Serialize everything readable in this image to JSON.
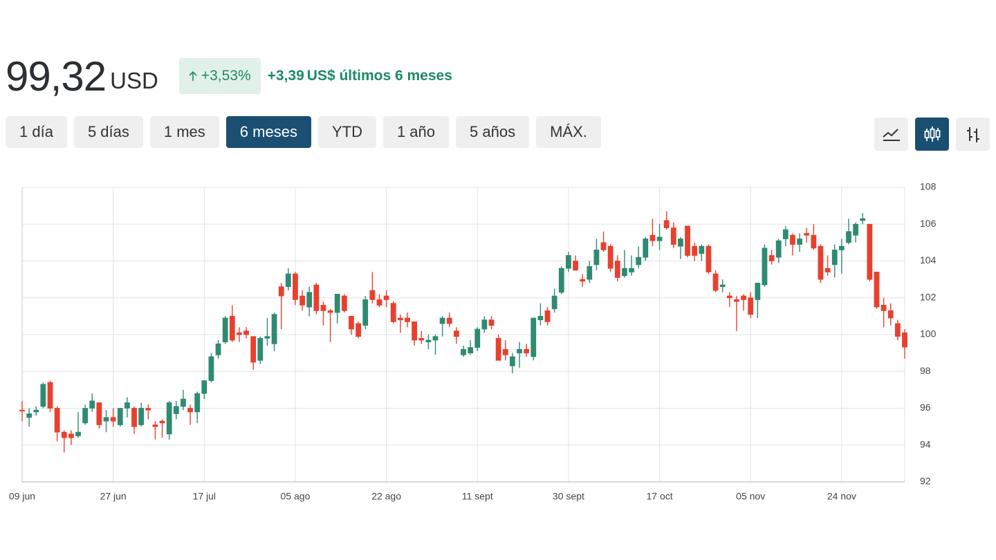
{
  "header": {
    "price": "99,32",
    "currency": "USD",
    "change_percent": "+3,53%",
    "change_amount": "+3,39",
    "change_label": "US$ últimos 6 meses"
  },
  "toolbar": {
    "ranges": [
      "1 día",
      "5 días",
      "1 mes",
      "6 meses",
      "YTD",
      "1 año",
      "5 años",
      "MÁX."
    ],
    "selected": 3
  },
  "chart_data": {
    "type": "candlestick",
    "categories": [
      "09 jun",
      null,
      null,
      null,
      null,
      null,
      null,
      null,
      null,
      null,
      null,
      null,
      null,
      "27 jun",
      null,
      null,
      null,
      null,
      null,
      null,
      null,
      null,
      null,
      null,
      null,
      null,
      "17 jul",
      null,
      null,
      null,
      null,
      null,
      null,
      null,
      null,
      null,
      null,
      null,
      null,
      "05 ago",
      null,
      null,
      null,
      null,
      null,
      null,
      null,
      null,
      null,
      null,
      null,
      null,
      "22 ago",
      null,
      null,
      null,
      null,
      null,
      null,
      null,
      null,
      null,
      null,
      null,
      null,
      "11 sept",
      null,
      null,
      null,
      null,
      null,
      null,
      null,
      null,
      null,
      null,
      null,
      null,
      "30 sept",
      null,
      null,
      null,
      null,
      null,
      null,
      null,
      null,
      null,
      null,
      null,
      null,
      "17 oct",
      null,
      null,
      null,
      null,
      null,
      null,
      null,
      null,
      null,
      null,
      null,
      null,
      "05 nov",
      null,
      null,
      null,
      null,
      null,
      null,
      null,
      null,
      null,
      null,
      null,
      null,
      "24 nov",
      null,
      null,
      null,
      null,
      null,
      null,
      null,
      null,
      null
    ],
    "open": [
      95.9,
      95.5,
      95.8,
      96.1,
      97.4,
      96.0,
      94.7,
      94.6,
      94.5,
      95.2,
      96.0,
      96.3,
      95.3,
      95.5,
      95.1,
      96.0,
      96.0,
      95.1,
      96.0,
      95.1,
      95.3,
      94.6,
      95.7,
      96.1,
      96.0,
      95.8,
      96.8,
      97.5,
      98.9,
      99.6,
      101.0,
      100.1,
      100.2,
      99.9,
      98.6,
      99.8,
      99.5,
      102.6,
      102.6,
      103.3,
      102.1,
      101.5,
      102.7,
      101.6,
      101.3,
      101.2,
      102.1,
      101.0,
      100.6,
      100.5,
      102.4,
      101.9,
      102.1,
      101.7,
      100.9,
      100.9,
      100.7,
      99.8,
      99.6,
      99.7,
      100.6,
      100.9,
      100.2,
      98.9,
      99.0,
      99.3,
      100.3,
      100.8,
      99.8,
      99.2,
      98.3,
      99.0,
      99.2,
      98.8,
      100.8,
      101.3,
      101.4,
      102.3,
      103.6,
      104.0,
      103.0,
      103.0,
      103.8,
      105.0,
      104.8,
      104.0,
      103.2,
      103.4,
      103.8,
      104.2,
      105.4,
      105.1,
      106.2,
      105.8,
      104.8,
      105.9,
      104.8,
      104.4,
      104.8,
      103.3,
      102.6,
      102.1,
      101.9,
      102.1,
      102.0,
      101.9,
      102.7,
      104.3,
      104.2,
      105.2,
      105.4,
      104.9,
      105.5,
      105.4,
      104.8,
      103.6,
      103.8,
      104.6,
      105.0,
      105.4,
      106.2,
      106.0,
      103.4,
      101.6,
      101.3,
      100.6,
      100.1
    ],
    "high": [
      96.4,
      96.0,
      96.1,
      97.4,
      97.5,
      96.1,
      94.8,
      94.8,
      95.8,
      96.2,
      96.8,
      96.3,
      95.9,
      96.0,
      96.0,
      96.6,
      96.1,
      96.3,
      96.2,
      95.3,
      95.4,
      96.4,
      96.4,
      97.0,
      96.2,
      96.9,
      97.5,
      99.0,
      99.7,
      101.0,
      101.6,
      100.4,
      100.4,
      99.9,
      99.9,
      100.9,
      101.2,
      102.8,
      103.6,
      103.4,
      102.4,
      102.6,
      102.8,
      101.8,
      101.4,
      102.2,
      102.2,
      101.0,
      100.7,
      102.1,
      103.4,
      102.2,
      102.4,
      101.8,
      101.1,
      101.2,
      100.7,
      100.2,
      100.0,
      100.0,
      101.0,
      101.2,
      100.4,
      99.4,
      99.7,
      100.4,
      101.0,
      101.0,
      100.0,
      99.7,
      99.0,
      99.6,
      99.5,
      100.9,
      101.7,
      101.5,
      102.5,
      103.7,
      104.5,
      104.3,
      103.3,
      104.0,
      105.2,
      105.6,
      104.9,
      104.3,
      104.6,
      104.3,
      104.8,
      105.3,
      106.3,
      106.0,
      106.7,
      106.1,
      105.3,
      105.9,
      105.0,
      104.9,
      104.9,
      103.5,
      103.0,
      102.3,
      102.1,
      102.2,
      102.3,
      102.8,
      104.9,
      104.6,
      105.2,
      105.9,
      105.5,
      105.5,
      105.8,
      106.0,
      104.9,
      104.3,
      104.9,
      105.2,
      106.3,
      106.1,
      106.6,
      106.0,
      103.4,
      102.0,
      101.7,
      100.8,
      100.3
    ],
    "low": [
      95.3,
      95.0,
      95.6,
      96.0,
      95.8,
      94.2,
      93.6,
      94.0,
      94.4,
      95.1,
      95.8,
      94.9,
      94.7,
      95.0,
      95.0,
      95.5,
      94.6,
      95.0,
      95.4,
      94.3,
      94.4,
      94.3,
      95.4,
      95.9,
      95.1,
      95.2,
      96.5,
      97.4,
      98.7,
      99.5,
      99.6,
      99.6,
      99.8,
      98.1,
      98.4,
      99.4,
      99.1,
      100.3,
      102.4,
      101.6,
      101.3,
      101.0,
      101.1,
      100.5,
      99.6,
      100.6,
      101.2,
      100.0,
      99.8,
      100.3,
      101.7,
      101.5,
      101.5,
      100.6,
      100.1,
      100.4,
      99.4,
      99.5,
      99.2,
      98.9,
      99.9,
      100.4,
      99.5,
      98.8,
      98.9,
      99.1,
      100.1,
      100.3,
      98.6,
      98.6,
      97.9,
      98.2,
      98.8,
      98.6,
      100.5,
      100.5,
      101.2,
      102.2,
      103.4,
      103.5,
      102.6,
      102.8,
      103.5,
      104.5,
      103.4,
      102.9,
      103.1,
      103.2,
      103.6,
      104.0,
      104.8,
      104.6,
      105.7,
      104.7,
      104.1,
      104.2,
      104.0,
      104.0,
      103.3,
      102.3,
      102.3,
      101.5,
      100.2,
      101.3,
      100.9,
      100.9,
      102.6,
      103.8,
      103.9,
      104.8,
      104.3,
      104.5,
      105.0,
      104.6,
      102.8,
      103.2,
      103.1,
      103.3,
      104.9,
      105.0,
      106.0,
      102.9,
      101.4,
      100.4,
      100.5,
      99.7,
      98.7
    ],
    "close": [
      95.85,
      95.7,
      95.9,
      97.3,
      96.0,
      94.7,
      94.4,
      94.4,
      94.7,
      96.0,
      96.4,
      95.1,
      95.5,
      95.3,
      96.0,
      96.3,
      95.0,
      96.0,
      95.9,
      95.0,
      95.2,
      96.3,
      96.1,
      96.5,
      95.8,
      96.8,
      97.5,
      98.8,
      99.5,
      100.9,
      99.7,
      100.0,
      100.0,
      98.5,
      99.8,
      99.9,
      101.1,
      102.1,
      103.3,
      101.9,
      101.6,
      102.3,
      101.3,
      101.3,
      101.2,
      102.2,
      101.3,
      100.3,
      99.9,
      101.9,
      101.9,
      101.6,
      101.9,
      100.7,
      100.8,
      100.7,
      99.7,
      99.7,
      99.7,
      99.9,
      100.9,
      100.6,
      99.9,
      99.2,
      99.3,
      100.3,
      100.8,
      100.5,
      98.6,
      98.9,
      98.8,
      99.2,
      99.0,
      100.9,
      101.0,
      100.7,
      102.1,
      103.6,
      104.3,
      103.5,
      102.9,
      103.7,
      104.6,
      104.6,
      103.6,
      103.1,
      103.6,
      103.6,
      104.2,
      105.2,
      105.1,
      105.3,
      105.8,
      104.9,
      105.2,
      104.3,
      104.3,
      104.8,
      103.4,
      102.4,
      102.7,
      102.0,
      101.8,
      101.9,
      101.1,
      102.8,
      104.7,
      104.0,
      105.1,
      105.7,
      104.9,
      105.2,
      105.4,
      104.7,
      103.0,
      103.4,
      104.6,
      104.8,
      105.6,
      106.0,
      106.3,
      103.0,
      101.5,
      101.3,
      100.9,
      99.9,
      99.32
    ],
    "up_color": "#2e8b72",
    "down_color": "#e8402f",
    "ylim": [
      92,
      108
    ],
    "yticks": [
      92,
      94,
      96,
      98,
      100,
      102,
      104,
      106,
      108
    ],
    "grid": true
  }
}
